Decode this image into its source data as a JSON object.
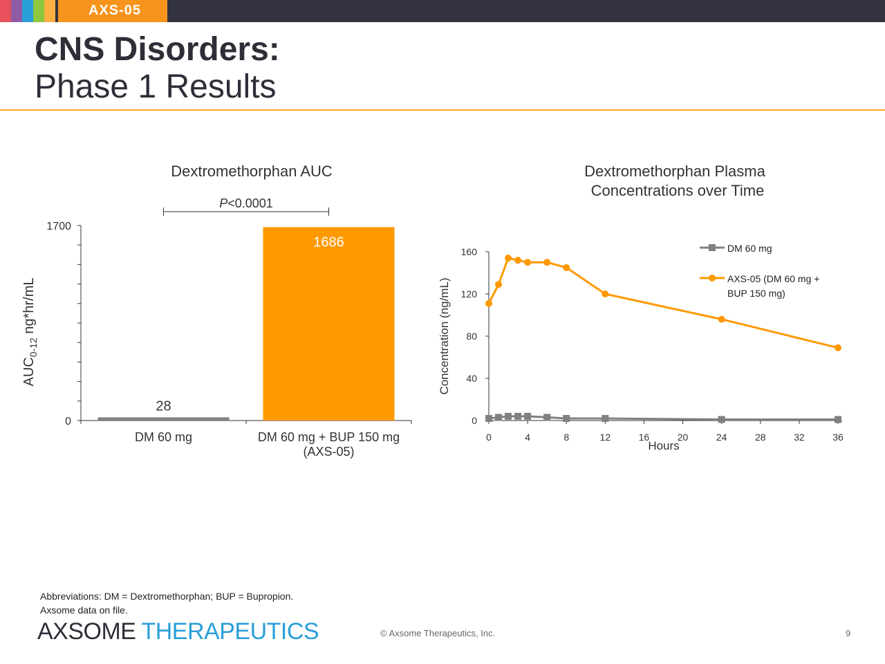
{
  "header": {
    "tag": "AXS-05",
    "title_line1": "CNS Disorders:",
    "title_line2": "Phase 1 Results",
    "stripe_colors": [
      "#e8505b",
      "#8e5ba6",
      "#2a9fd8",
      "#8dc63f",
      "#fbb040"
    ]
  },
  "chart_data": [
    {
      "type": "bar",
      "title": "Dextromethorphan AUC",
      "ylabel_main": "AUC",
      "ylabel_sub": "0-12",
      "ylabel_rest": " ng*hr/mL",
      "ylim": [
        0,
        1700
      ],
      "yticks": [
        "0",
        "1700"
      ],
      "categories": [
        "DM 60 mg",
        "DM 60 mg + BUP 150 mg"
      ],
      "category_sublabels": [
        "",
        "(AXS-05)"
      ],
      "values": [
        28,
        1686
      ],
      "value_labels": [
        "28",
        "1686"
      ],
      "colors": [
        "#808080",
        "#ff9900"
      ],
      "significance": {
        "prefix": "P",
        "text": "<0.0001"
      }
    },
    {
      "type": "line",
      "title_line1": "Dextromethorphan Plasma",
      "title_line2": "Concentrations over Time",
      "xlabel": "Hours",
      "ylabel": "Concentration (ng/mL)",
      "xlim": [
        0,
        36
      ],
      "ylim": [
        0,
        160
      ],
      "xticks": [
        "0",
        "4",
        "8",
        "12",
        "16",
        "20",
        "24",
        "28",
        "32",
        "36"
      ],
      "yticks": [
        "0",
        "40",
        "80",
        "120",
        "160"
      ],
      "series": [
        {
          "name": "DM 60 mg",
          "color": "#808080",
          "marker": "square",
          "x": [
            0,
            1,
            2,
            3,
            4,
            6,
            8,
            12,
            24,
            36
          ],
          "y": [
            2,
            3,
            4,
            4,
            4,
            3,
            2,
            2,
            1,
            1
          ]
        },
        {
          "name_line1": "AXS-05 (DM 60 mg +",
          "name_line2": "BUP 150 mg)",
          "color": "#ff9900",
          "marker": "circle",
          "x": [
            0,
            1,
            2,
            3,
            4,
            6,
            8,
            12,
            24,
            36
          ],
          "y": [
            111,
            129,
            154,
            152,
            150,
            150,
            145,
            120,
            96,
            69
          ]
        }
      ]
    }
  ],
  "footer": {
    "abbreviations": "Abbreviations: DM = Dextromethorphan; BUP = Bupropion.",
    "source": "Axsome data on file.",
    "logo_part1": "AXSOME",
    "logo_part2": "THERAPEUTICS",
    "copyright": "© Axsome Therapeutics, Inc.",
    "page": "9"
  }
}
